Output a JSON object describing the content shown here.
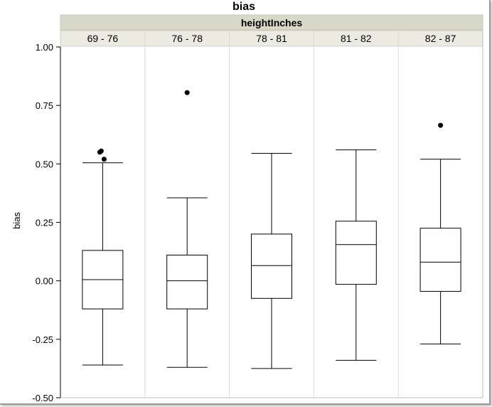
{
  "colors": {
    "background": "#ffffff",
    "header_band": "#d8d8c8",
    "subheader_band": "#ebebe2",
    "gridline": "#d9d9d9",
    "box_stroke": "#000000",
    "outlier": "#000000"
  },
  "chart_data": {
    "type": "boxplot",
    "title": "bias",
    "group_label": "heightInches",
    "ylabel": "bias",
    "ylim": [
      -0.5,
      1.0
    ],
    "yticks": [
      "1.00",
      "0.75",
      "0.50",
      "0.25",
      "0.00",
      "-0.25",
      "-0.50"
    ],
    "ytick_values": [
      1.0,
      0.75,
      0.5,
      0.25,
      0.0,
      -0.25,
      -0.5
    ],
    "grid": "vertical group separators",
    "categories": [
      "69 - 76",
      "76 - 78",
      "78 - 81",
      "81 - 82",
      "82 - 87"
    ],
    "boxes": [
      {
        "category": "69 - 76",
        "whisker_low": -0.36,
        "q1": -0.12,
        "median": 0.005,
        "q3": 0.13,
        "whisker_high": 0.505,
        "outliers": [
          0.55,
          0.555,
          0.52
        ]
      },
      {
        "category": "76 - 78",
        "whisker_low": -0.37,
        "q1": -0.12,
        "median": 0.0,
        "q3": 0.11,
        "whisker_high": 0.355,
        "outliers": [
          0.805
        ]
      },
      {
        "category": "78 - 81",
        "whisker_low": -0.375,
        "q1": -0.075,
        "median": 0.065,
        "q3": 0.2,
        "whisker_high": 0.545,
        "outliers": []
      },
      {
        "category": "81 - 82",
        "whisker_low": -0.34,
        "q1": -0.015,
        "median": 0.155,
        "q3": 0.255,
        "whisker_high": 0.56,
        "outliers": []
      },
      {
        "category": "82 - 87",
        "whisker_low": -0.27,
        "q1": -0.045,
        "median": 0.08,
        "q3": 0.225,
        "whisker_high": 0.52,
        "outliers": [
          0.665
        ]
      }
    ]
  }
}
